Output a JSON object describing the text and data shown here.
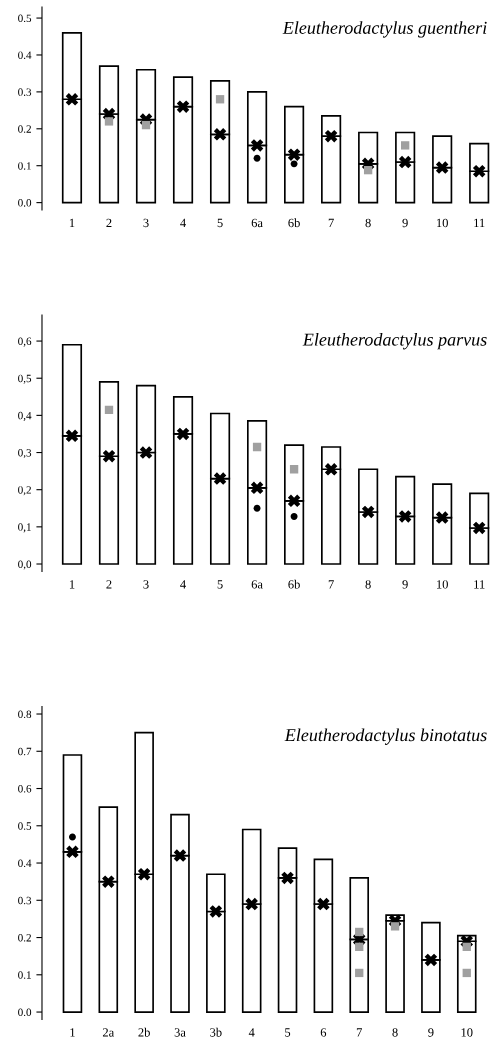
{
  "chart_data": [
    {
      "type": "bar",
      "stacked": true,
      "title": "Eleutherodactylus guentheri",
      "legend": false,
      "grid": false,
      "categories": [
        "1",
        "2",
        "3",
        "4",
        "5",
        "6a",
        "6b",
        "7",
        "8",
        "9",
        "10",
        "11"
      ],
      "ylim": [
        -0.02,
        0.53
      ],
      "yticks": [
        {
          "value": 0.0,
          "label": "0.0"
        },
        {
          "value": 0.1,
          "label": "0.1"
        },
        {
          "value": 0.2,
          "label": "0.2"
        },
        {
          "value": 0.3,
          "label": "0.3"
        },
        {
          "value": 0.4,
          "label": "0.4"
        },
        {
          "value": 0.5,
          "label": "0.5"
        }
      ],
      "series": [
        {
          "color": "#ffffff",
          "values": [
            0.28,
            0.24,
            0.225,
            0.26,
            0.185,
            0.155,
            0.13,
            0.18,
            0.105,
            0.11,
            0.095,
            0.085
          ]
        },
        {
          "color": "#ffffff",
          "values": [
            0.18,
            0.13,
            0.135,
            0.08,
            0.145,
            0.145,
            0.13,
            0.055,
            0.085,
            0.08,
            0.085,
            0.075
          ]
        },
        {
          "type": "scatter",
          "marker": "cross",
          "color": "#000000",
          "values": [
            0.28,
            0.24,
            0.225,
            0.26,
            0.185,
            0.155,
            0.13,
            0.18,
            0.105,
            0.11,
            0.095,
            0.085
          ]
        },
        {
          "type": "scatter",
          "marker": "square",
          "color": "#a0a0a0",
          "values": [
            null,
            0.22,
            0.21,
            null,
            0.28,
            null,
            null,
            null,
            0.088,
            0.155,
            null,
            null
          ]
        },
        {
          "type": "scatter",
          "marker": "circle",
          "color": "#000000",
          "values": [
            null,
            null,
            null,
            null,
            null,
            0.12,
            0.105,
            null,
            null,
            null,
            null,
            null
          ]
        }
      ]
    },
    {
      "type": "bar",
      "stacked": true,
      "title": "Eleutherodactylus parvus",
      "legend": false,
      "grid": false,
      "categories": [
        "1",
        "2",
        "3",
        "4",
        "5",
        "6a",
        "6b",
        "7",
        "8",
        "9",
        "10",
        "11"
      ],
      "ylim": [
        -0.02,
        0.67
      ],
      "yticks": [
        {
          "value": 0.0,
          "label": "0,0"
        },
        {
          "value": 0.1,
          "label": "0,1"
        },
        {
          "value": 0.2,
          "label": "0,2"
        },
        {
          "value": 0.3,
          "label": "0,3"
        },
        {
          "value": 0.4,
          "label": "0,4"
        },
        {
          "value": 0.5,
          "label": "0,5"
        },
        {
          "value": 0.6,
          "label": "0,6"
        }
      ],
      "series": [
        {
          "color": "#ffffff",
          "values": [
            0.345,
            0.29,
            0.3,
            0.35,
            0.23,
            0.205,
            0.17,
            0.255,
            0.14,
            0.128,
            0.125,
            0.097
          ]
        },
        {
          "color": "#ffffff",
          "values": [
            0.245,
            0.2,
            0.18,
            0.1,
            0.175,
            0.18,
            0.15,
            0.06,
            0.115,
            0.107,
            0.09,
            0.093
          ]
        },
        {
          "type": "scatter",
          "marker": "cross",
          "color": "#000000",
          "values": [
            0.345,
            0.29,
            0.3,
            0.35,
            0.23,
            0.205,
            0.17,
            0.255,
            0.14,
            0.128,
            0.125,
            0.097
          ]
        },
        {
          "type": "scatter",
          "marker": "square",
          "color": "#a0a0a0",
          "values": [
            null,
            0.415,
            null,
            null,
            null,
            0.315,
            0.255,
            null,
            null,
            null,
            null,
            null
          ]
        },
        {
          "type": "scatter",
          "marker": "circle",
          "color": "#000000",
          "values": [
            null,
            null,
            null,
            null,
            null,
            0.15,
            0.128,
            null,
            null,
            null,
            null,
            null
          ]
        }
      ]
    },
    {
      "type": "bar",
      "stacked": true,
      "title": "Eleutherodactylus binotatus",
      "legend": false,
      "grid": false,
      "categories": [
        "1",
        "2a",
        "2b",
        "3a",
        "3b",
        "4",
        "5",
        "6",
        "7",
        "8",
        "9",
        "10"
      ],
      "ylim": [
        -0.02,
        0.82
      ],
      "yticks": [
        {
          "value": 0.0,
          "label": "0.0"
        },
        {
          "value": 0.1,
          "label": "0.1"
        },
        {
          "value": 0.2,
          "label": "0.2"
        },
        {
          "value": 0.3,
          "label": "0.3"
        },
        {
          "value": 0.4,
          "label": "0.4"
        },
        {
          "value": 0.5,
          "label": "0.5"
        },
        {
          "value": 0.6,
          "label": "0.6"
        },
        {
          "value": 0.7,
          "label": "0.7"
        },
        {
          "value": 0.8,
          "label": "0.8"
        }
      ],
      "series": [
        {
          "color": "#ffffff",
          "values": [
            0.43,
            0.35,
            0.37,
            0.42,
            0.27,
            0.29,
            0.36,
            0.29,
            0.195,
            0.245,
            0.14,
            0.19
          ]
        },
        {
          "color": "#ffffff",
          "values": [
            0.26,
            0.2,
            0.38,
            0.11,
            0.1,
            0.2,
            0.08,
            0.12,
            0.165,
            0.015,
            0.1,
            0.015
          ]
        },
        {
          "type": "scatter",
          "marker": "cross",
          "color": "#000000",
          "values": [
            0.43,
            0.35,
            0.37,
            0.42,
            0.27,
            0.29,
            0.36,
            0.29,
            0.195,
            0.245,
            0.14,
            0.19
          ]
        },
        {
          "type": "scatter",
          "marker": "square",
          "color": "#a0a0a0",
          "values": [
            null,
            null,
            null,
            null,
            null,
            null,
            null,
            null,
            0.215,
            0.23,
            null,
            0.175
          ]
        },
        {
          "type": "scatter",
          "marker": "square",
          "color": "#a0a0a0",
          "values": [
            null,
            null,
            null,
            null,
            null,
            null,
            null,
            null,
            0.175,
            null,
            null,
            0.105
          ]
        },
        {
          "type": "scatter",
          "marker": "square",
          "color": "#a0a0a0",
          "values": [
            null,
            null,
            null,
            null,
            null,
            null,
            null,
            null,
            0.105,
            null,
            null,
            null
          ]
        },
        {
          "type": "scatter",
          "marker": "circle",
          "color": "#000000",
          "values": [
            0.47,
            null,
            null,
            null,
            null,
            null,
            null,
            null,
            null,
            null,
            null,
            null
          ]
        }
      ]
    }
  ]
}
